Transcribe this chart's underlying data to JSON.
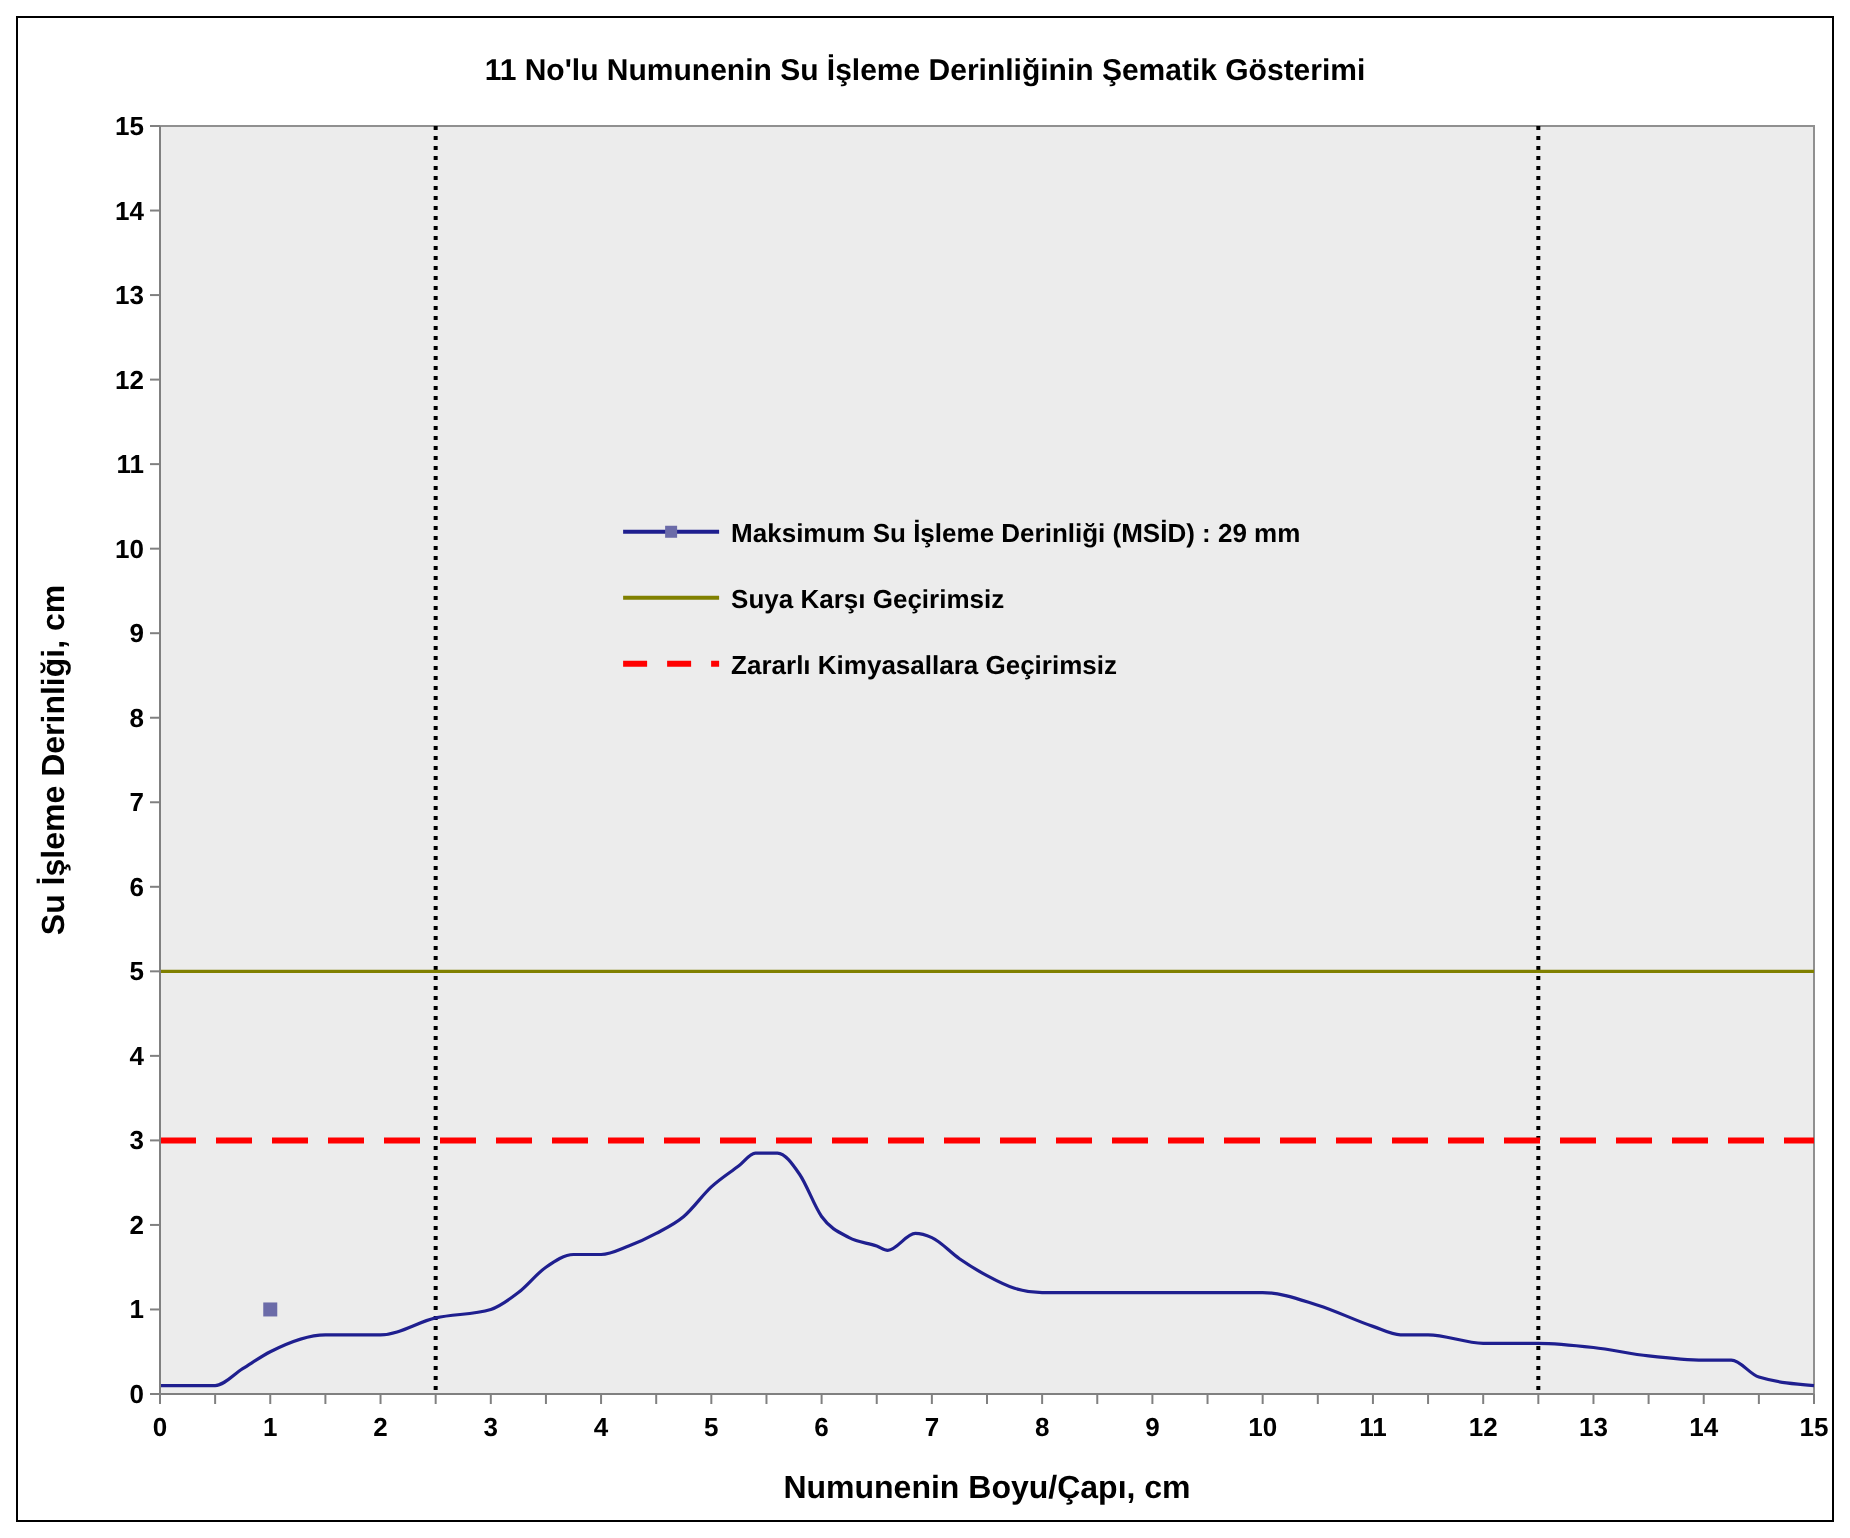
{
  "chart_data": {
    "type": "line",
    "title": "11  No'lu Numunenin Su İşleme Derinliğinin Şematik Gösterimi",
    "xlabel": "Numunenin Boyu/Çapı, cm",
    "ylabel": "Su İşleme Derinliği, cm",
    "xlim": [
      0,
      15
    ],
    "xticks": [
      0,
      {
        "value": 0.5,
        "label": null
      },
      1,
      {
        "value": 1.5,
        "label": null
      },
      2,
      {
        "value": 2.5,
        "label": null
      },
      3,
      {
        "value": 3.5,
        "label": null
      },
      4,
      {
        "value": 4.5,
        "label": null
      },
      5,
      {
        "value": 5.5,
        "label": null
      },
      6,
      {
        "value": 6.5,
        "label": null
      },
      7,
      {
        "value": 7.5,
        "label": null
      },
      8,
      {
        "value": 8.5,
        "label": null
      },
      9,
      {
        "value": 9.5,
        "label": null
      },
      10,
      {
        "value": 10.5,
        "label": null
      },
      11,
      {
        "value": 11.5,
        "label": null
      },
      12,
      {
        "value": 12.5,
        "label": null
      },
      13,
      {
        "value": 13.5,
        "label": null
      },
      14,
      {
        "value": 14.5,
        "label": null
      },
      15
    ],
    "ylim": [
      0,
      15
    ],
    "yticks": [
      0,
      1,
      2,
      3,
      4,
      5,
      6,
      7,
      8,
      9,
      10,
      11,
      12,
      13,
      14,
      15
    ],
    "series": [
      {
        "name": "Maksimum Su İşleme Derinliği (MSİD) : 29 mm",
        "color": "#1f1f8f",
        "x": [
          0,
          0.25,
          0.5,
          0.75,
          1,
          1.5,
          2,
          2.5,
          3,
          3.25,
          3.5,
          3.75,
          4,
          4.25,
          4.5,
          4.75,
          5,
          5.25,
          5.4,
          5.6,
          5.8,
          6,
          6.25,
          6.5,
          6.6,
          6.85,
          7,
          7.25,
          7.5,
          7.75,
          8,
          9,
          10,
          10.5,
          11,
          11.25,
          11.5,
          12,
          12.5,
          13,
          13.5,
          14,
          14.25,
          14.5,
          15
        ],
        "values": [
          0.1,
          0.1,
          0.1,
          0.3,
          0.5,
          0.7,
          0.7,
          0.9,
          1.0,
          1.2,
          1.5,
          1.65,
          1.65,
          1.75,
          1.9,
          2.1,
          2.45,
          2.7,
          2.85,
          2.85,
          2.6,
          2.1,
          1.85,
          1.75,
          1.7,
          1.9,
          1.85,
          1.6,
          1.4,
          1.25,
          1.2,
          1.2,
          1.2,
          1.05,
          0.8,
          0.7,
          0.7,
          0.6,
          0.6,
          0.55,
          0.45,
          0.4,
          0.4,
          0.2,
          0.1
        ]
      },
      {
        "type": "scatter",
        "color": "#6b6ba8",
        "marker": "square",
        "x": [
          1
        ],
        "values": [
          1
        ]
      },
      {
        "name": "Suya Karşı Geçirimsiz",
        "color": "#808000",
        "x": [
          0,
          15
        ],
        "values": [
          5,
          5
        ]
      },
      {
        "name": "Zararlı Kimyasallara Geçirimsiz",
        "color": "#ff0000",
        "line_style": "dashed",
        "x": [
          0,
          15
        ],
        "values": [
          3,
          3
        ]
      }
    ],
    "ref_lines": [
      {
        "axis": "x",
        "value": 2.5,
        "color": "#000000",
        "line_style": "dotted"
      },
      {
        "axis": "x",
        "value": 12.5,
        "color": "#000000",
        "line_style": "dotted"
      }
    ],
    "grid": false,
    "legend": "center"
  }
}
